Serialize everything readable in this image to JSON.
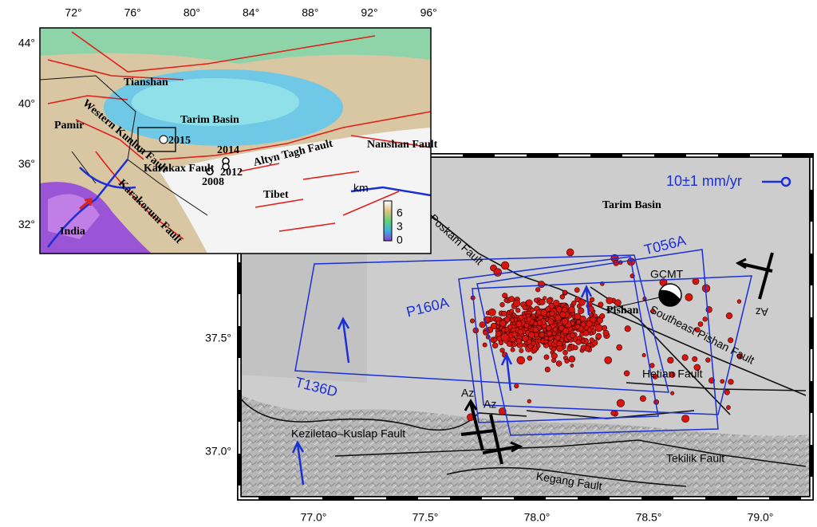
{
  "inset_map": {
    "lon_ticks": [
      "72°",
      "76°",
      "80°",
      "84°",
      "88°",
      "92°",
      "96°"
    ],
    "lat_ticks": [
      "44°",
      "40°",
      "36°",
      "32°"
    ],
    "labels": {
      "tianshan": "Tianshan",
      "tarim_basin": "Tarim Basin",
      "pamir": "Pamir",
      "western_kunlun_fault": "Western Kunlun Fault",
      "year_2015": "2015",
      "year_2014": "2014",
      "year_2012": "2012",
      "year_2008": "2008",
      "karakax_fault": "Karakax Fault",
      "altyn_tagh_fault": "Altyn Tagh Fault",
      "nanshan_fault": "Nanshan Fault",
      "tibet": "Tibet",
      "karakorum_fault": "Karakorum Fault",
      "india": "India"
    },
    "elevation_scale": {
      "unit": "km",
      "ticks": [
        "6",
        "3",
        "0"
      ]
    }
  },
  "main_map": {
    "lon_ticks": [
      "77.0°",
      "77.5°",
      "78.0°",
      "78.5°",
      "79.0°"
    ],
    "lat_ticks": [
      "37.5°",
      "37.0°"
    ],
    "velocity_scale": "10±1 mm/yr",
    "labels": {
      "tarim_basin": "Tarim Basin",
      "poskam_fault": "Poskam Fault",
      "gcmt": "GCMT",
      "pishan": "Pishan",
      "southeast_pishan_fault": "Southeast Pishan Fault",
      "hetian_fault": "Hetian Fault",
      "keziletao_kuslap_fault": "Keziletao–Kuslap Fault",
      "tekilik_fault": "Tekilik Fault",
      "kegang_fault": "Kegang Fault"
    },
    "tracks": [
      "T056A",
      "P160A",
      "T136D"
    ],
    "azimuth_labels": [
      "Az",
      "Az",
      "Az"
    ]
  }
}
